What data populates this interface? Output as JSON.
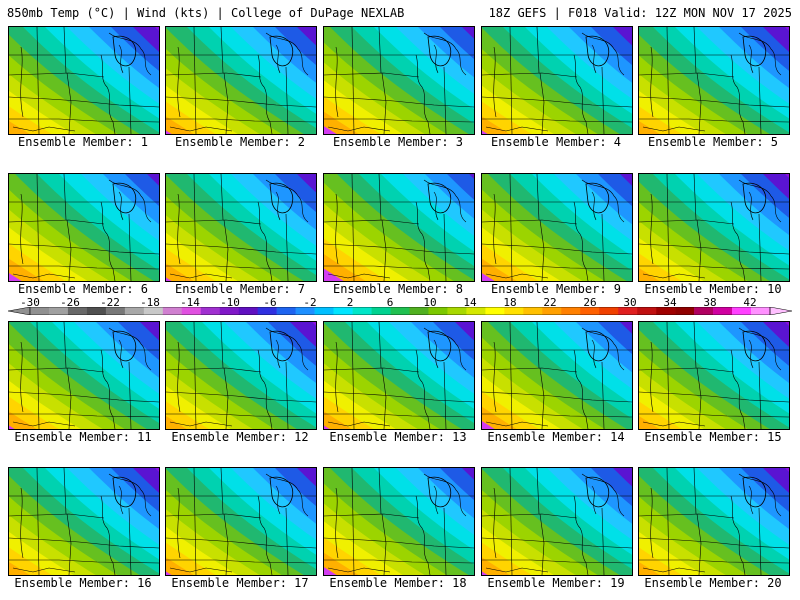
{
  "header": {
    "left": "850mb Temp (°C) | Wind (kts) | College of DuPage NEXLAB",
    "right": "18Z GEFS | F018 Valid: 12Z MON NOV 17 2025"
  },
  "panels": [
    {
      "label": "Ensemble Member: 1",
      "variant": 0
    },
    {
      "label": "Ensemble Member: 2",
      "variant": 1
    },
    {
      "label": "Ensemble Member: 3",
      "variant": 2
    },
    {
      "label": "Ensemble Member: 4",
      "variant": 1
    },
    {
      "label": "Ensemble Member: 5",
      "variant": 0
    },
    {
      "label": "Ensemble Member: 6",
      "variant": 2
    },
    {
      "label": "Ensemble Member: 7",
      "variant": 1
    },
    {
      "label": "Ensemble Member: 8",
      "variant": 3
    },
    {
      "label": "Ensemble Member: 9",
      "variant": 2
    },
    {
      "label": "Ensemble Member: 10",
      "variant": 0
    },
    {
      "label": "Ensemble Member: 11",
      "variant": 1
    },
    {
      "label": "Ensemble Member: 12",
      "variant": 0
    },
    {
      "label": "Ensemble Member: 13",
      "variant": 1
    },
    {
      "label": "Ensemble Member: 14",
      "variant": 2
    },
    {
      "label": "Ensemble Member: 15",
      "variant": 0
    },
    {
      "label": "Ensemble Member: 16",
      "variant": 0
    },
    {
      "label": "Ensemble Member: 17",
      "variant": 1
    },
    {
      "label": "Ensemble Member: 18",
      "variant": 2
    },
    {
      "label": "Ensemble Member: 19",
      "variant": 1
    },
    {
      "label": "Ensemble Member: 20",
      "variant": 0
    }
  ],
  "colorbar": {
    "min": -30,
    "max": 44,
    "labels": [
      "-30",
      "-26",
      "-22",
      "-18",
      "-14",
      "-10",
      "-6",
      "-2",
      "2",
      "6",
      "10",
      "14",
      "18",
      "22",
      "26",
      "30",
      "34",
      "38",
      "42"
    ],
    "colors": [
      "#909090",
      "#a0a0a0",
      "#686868",
      "#505050",
      "#787878",
      "#a8a8a8",
      "#c8c8c8",
      "#d080d0",
      "#e050e0",
      "#a030d0",
      "#8018c8",
      "#6010c0",
      "#3030e0",
      "#1e64f0",
      "#1e90ff",
      "#00bfff",
      "#00e5ff",
      "#00e6c8",
      "#00d290",
      "#20c050",
      "#50b020",
      "#7cc800",
      "#a8d800",
      "#d4e800",
      "#ffff00",
      "#ffe000",
      "#ffc000",
      "#ffa000",
      "#ff8000",
      "#ff6000",
      "#f04000",
      "#e02020",
      "#c01010",
      "#a00000",
      "#900000",
      "#b00060",
      "#d000a0",
      "#ff40ff",
      "#ff90ff"
    ],
    "field_colors": [
      "#ffb000",
      "#ffd400",
      "#f0f000",
      "#c8e000",
      "#9cd400",
      "#66c020",
      "#20b870",
      "#00d2b0",
      "#00e0e8",
      "#20c8ff",
      "#1e96ff",
      "#1e5ae6",
      "#5a14d2",
      "#8c10e0",
      "#b41ee6",
      "#d23cf0"
    ]
  }
}
